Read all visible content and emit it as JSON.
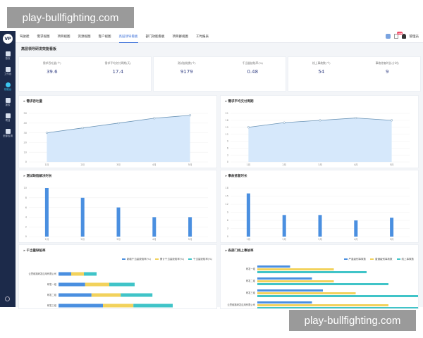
{
  "watermark": "play-bullfighting.com",
  "logo": "VP",
  "sidebar": [
    {
      "label": "首页"
    },
    {
      "label": "工作台"
    },
    {
      "label": "效能台"
    },
    {
      "label": "报表"
    },
    {
      "label": "项目"
    },
    {
      "label": "全部应用"
    }
  ],
  "tabs": [
    "驾驶舱",
    "需求视图",
    "项目视图",
    "资源视图",
    "客户视图",
    "高层领导看板",
    "部门效能看板",
    "项目群视图",
    "工时报表"
  ],
  "active_tab": 5,
  "user": {
    "name": "管理员",
    "badge": "new"
  },
  "page_title": "高层领导研发效能看板",
  "metrics": [
    {
      "label": "需求吞吐量(个)",
      "value": "39.6"
    },
    {
      "label": "需求平均交付周期(天)",
      "value": "17.4"
    },
    {
      "label": "测试缺陷数(个)",
      "value": "9179"
    },
    {
      "label": "千当量缺陷率(%)",
      "value": "0.48"
    },
    {
      "label": "线上事故数(个)",
      "value": "54"
    },
    {
      "label": "事故修复时长(小时)",
      "value": "9"
    }
  ],
  "colors": {
    "blue": "#4a8fe0",
    "yellow": "#f2d25c",
    "teal": "#40c4c8",
    "area": "#d6e8fb",
    "line": "#6a93b5"
  },
  "chart_data": [
    {
      "type": "area",
      "title": "需求吞吐量",
      "categories": [
        "1月",
        "2月",
        "3月",
        "4月",
        "5月"
      ],
      "values": [
        30,
        35,
        40,
        45,
        48
      ],
      "ylim": [
        0,
        50
      ],
      "ticks": [
        0,
        10,
        20,
        30,
        40,
        50
      ]
    },
    {
      "type": "area",
      "title": "需求平均交付周期",
      "categories": [
        "1月",
        "2月",
        "3月",
        "4月",
        "5月"
      ],
      "values": [
        15,
        17,
        18,
        19,
        18
      ],
      "ylim": [
        0,
        21
      ],
      "ticks": [
        0,
        3,
        6,
        9,
        12,
        15,
        18,
        21
      ]
    },
    {
      "type": "bar",
      "title": "测试缺陷解决时长",
      "categories": [
        "1月",
        "2月",
        "3月",
        "4月",
        "5月"
      ],
      "values": [
        10,
        8,
        6,
        4,
        4
      ],
      "ylim": [
        0,
        10
      ],
      "ticks": [
        0,
        2,
        4,
        6,
        8,
        10
      ]
    },
    {
      "type": "bar",
      "title": "事故修复时长",
      "categories": [
        "1月",
        "2月",
        "3月",
        "4月",
        "5月"
      ],
      "values": [
        16,
        8,
        8,
        6,
        7
      ],
      "ylim": [
        0,
        18
      ],
      "ticks": [
        0,
        3,
        6,
        9,
        12,
        15,
        18
      ]
    },
    {
      "type": "stacked-hbar",
      "title": "千当量缺陷率",
      "categories": [
        "云思维路研发应用有限公司",
        "研发一组",
        "研发二组",
        "研发三组"
      ],
      "series": [
        {
          "name": "新增千当量缺陷率(%)",
          "values": [
            1,
            2.1,
            2.6,
            3.5
          ]
        },
        {
          "name": "累计千当量缺陷率(%)",
          "values": [
            1,
            1.9,
            2.3,
            2.4
          ]
        },
        {
          "name": "千当量缺陷率(%)",
          "values": [
            1,
            2,
            2.5,
            3.1
          ]
        }
      ],
      "legend": "top-right"
    },
    {
      "type": "hbar",
      "title": "各部门线上事故率",
      "categories": [
        "研发一组",
        "研发二组",
        "研发三组",
        "云思维路研发应用有限公司"
      ],
      "series": [
        {
          "name": "严重级别事故数",
          "values": [
            3,
            5,
            6,
            5
          ]
        },
        {
          "name": "普通级别事故数",
          "values": [
            7,
            7,
            9,
            12
          ]
        },
        {
          "name": "线上事故数",
          "values": [
            10,
            12,
            15,
            15
          ]
        }
      ],
      "legend": "top-right"
    }
  ]
}
